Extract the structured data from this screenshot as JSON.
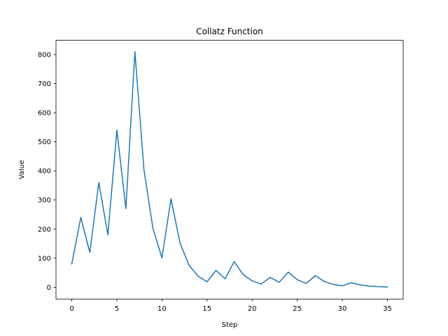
{
  "chart_data": {
    "type": "line",
    "title": "Collatz Function",
    "xlabel": "Step",
    "ylabel": "Value",
    "xlim": [
      -1.75,
      36.75
    ],
    "ylim": [
      -40.5,
      849.0
    ],
    "xticks": [
      0,
      5,
      10,
      15,
      20,
      25,
      30,
      35
    ],
    "yticks": [
      0,
      100,
      200,
      300,
      400,
      500,
      600,
      700,
      800
    ],
    "grid": false,
    "series": [
      {
        "color": "#1f77b4",
        "x": [
          0,
          1,
          2,
          3,
          4,
          5,
          6,
          7,
          8,
          9,
          10,
          11,
          12,
          13,
          14,
          15,
          16,
          17,
          18,
          19,
          20,
          21,
          22,
          23,
          24,
          25,
          26,
          27,
          28,
          29,
          30,
          31,
          32,
          33,
          34,
          35
        ],
        "values": [
          80,
          240,
          120,
          360,
          180,
          540,
          270,
          810,
          405,
          202,
          101,
          304,
          152,
          76,
          38,
          19,
          58,
          29,
          88,
          44,
          22,
          11,
          34,
          17,
          52,
          26,
          13,
          40,
          20,
          10,
          5,
          16,
          8,
          4,
          2,
          1
        ]
      }
    ]
  }
}
